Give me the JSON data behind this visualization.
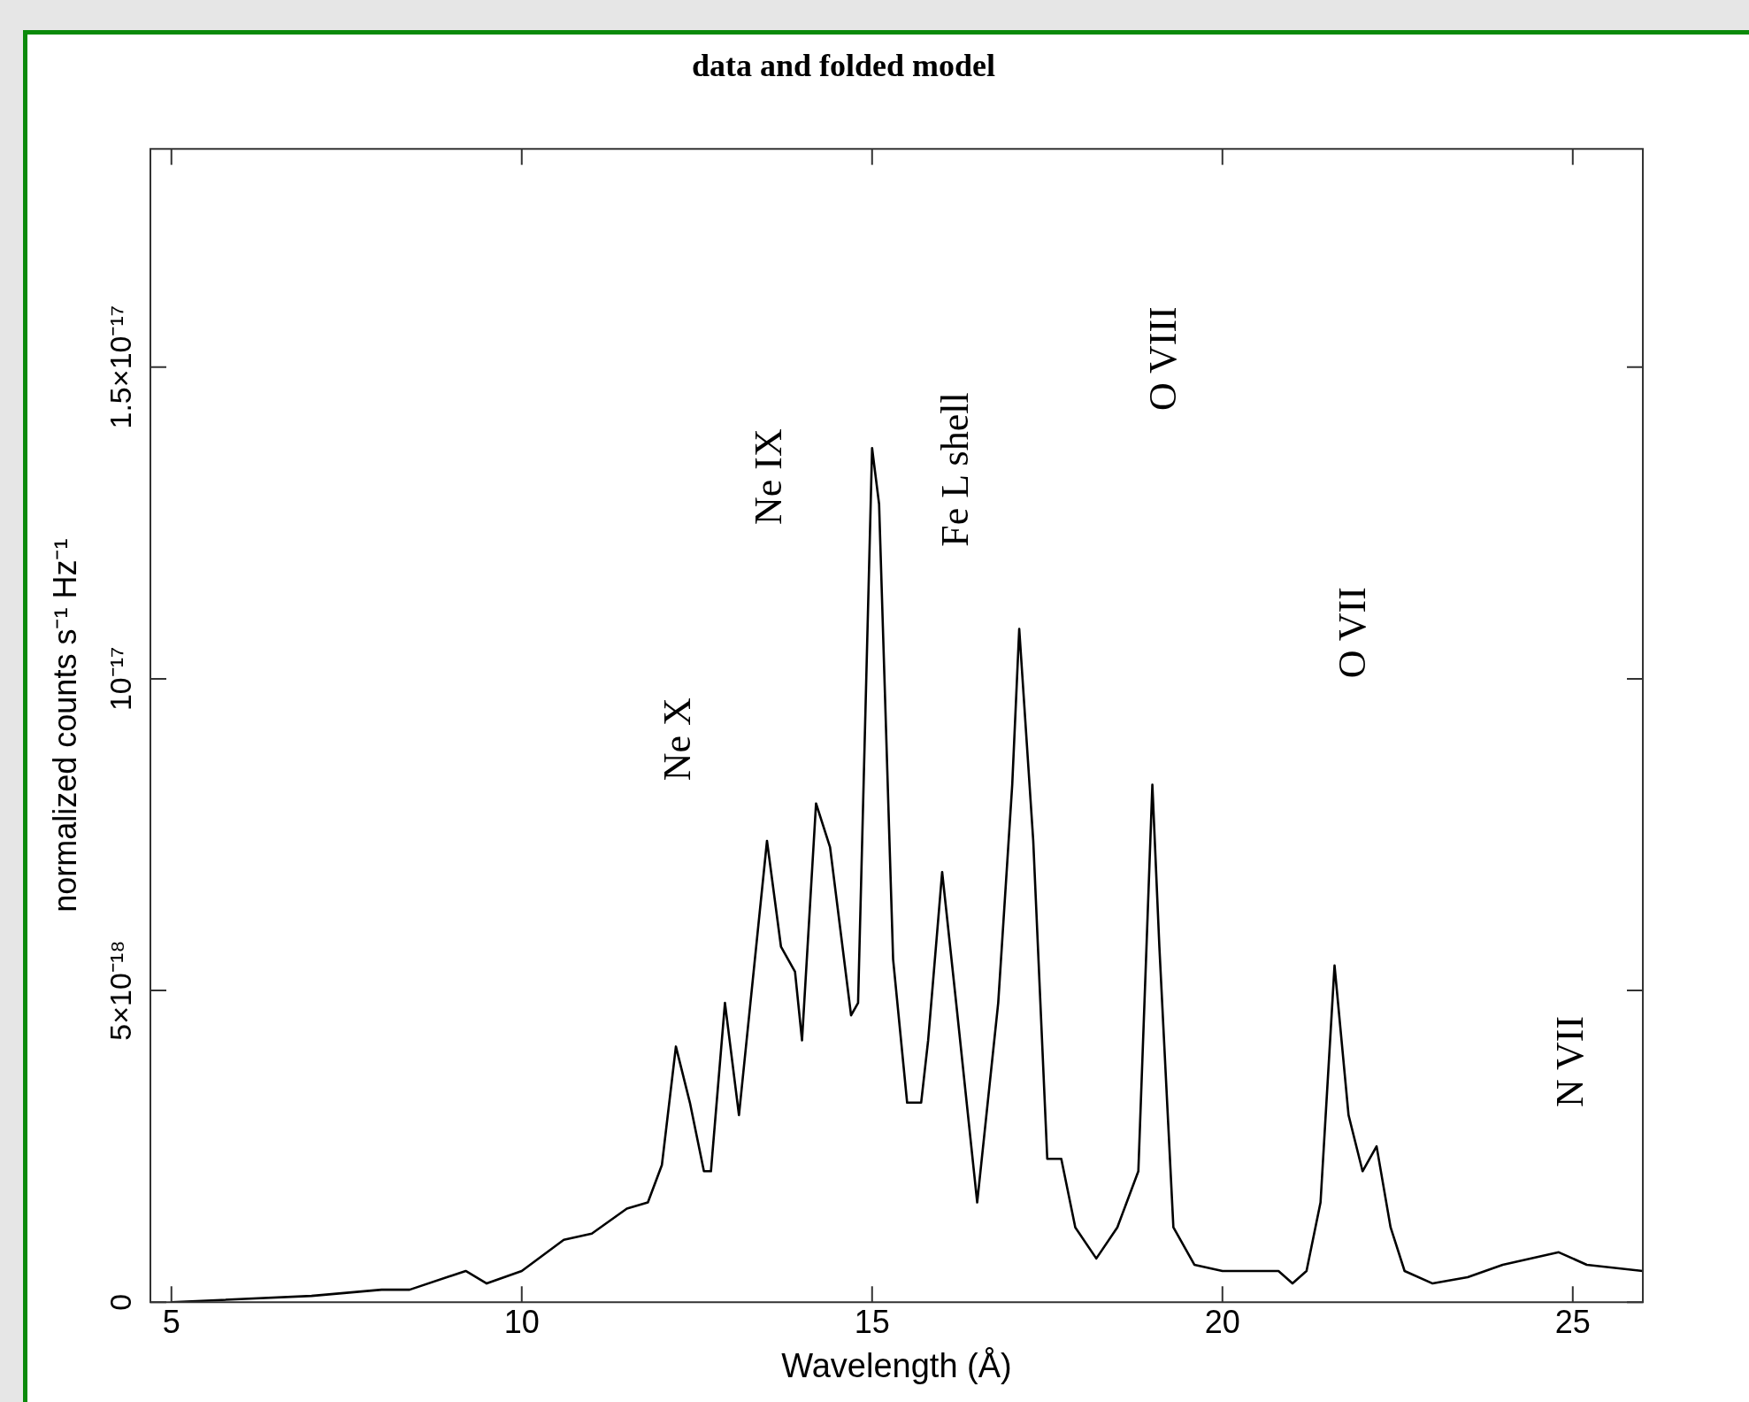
{
  "chart_data": {
    "type": "line",
    "title": "data and folded model",
    "xlabel": "Wavelength (Å)",
    "ylabel": "normalized counts s⁻¹ Hz⁻¹",
    "xlim": [
      4.7,
      26
    ],
    "xticks": [
      5,
      10,
      15,
      20,
      25
    ],
    "ylim": [
      0,
      1.85e-17
    ],
    "yticks": [
      0,
      {
        "value": 5e-18,
        "label": "5×10⁻¹⁸"
      },
      {
        "value": 1e-17,
        "label": "10⁻¹⁷"
      },
      {
        "value": 1.5e-17,
        "label": "1.5×10⁻¹⁷"
      }
    ],
    "series": [
      {
        "color": "#000000",
        "x": [
          5,
          7,
          8,
          8.4,
          9.2,
          9.5,
          10,
          10.6,
          11,
          11.5,
          11.8,
          12,
          12.2,
          12.4,
          12.6,
          12.7,
          12.9,
          13.1,
          13.5,
          13.7,
          13.9,
          14,
          14.2,
          14.4,
          14.7,
          14.8,
          15,
          15.1,
          15.3,
          15.5,
          15.7,
          15.8,
          16,
          16.2,
          16.5,
          16.8,
          17,
          17.1,
          17.3,
          17.5,
          17.7,
          17.9,
          18.2,
          18.5,
          18.8,
          19,
          19.1,
          19.3,
          19.6,
          20,
          20.8,
          21,
          21.2,
          21.4,
          21.6,
          21.8,
          22,
          22.2,
          22.4,
          22.6,
          23,
          23.5,
          24,
          24.8,
          25.2,
          26
        ],
        "values": [
          0,
          1e-19,
          2e-19,
          2e-19,
          5e-19,
          3e-19,
          5e-19,
          1e-18,
          1.1e-18,
          1.5e-18,
          1.6e-18,
          2.2e-18,
          4.1e-18,
          3.2e-18,
          2.1e-18,
          2.1e-18,
          4.8e-18,
          3e-18,
          7.4e-18,
          5.7e-18,
          5.3e-18,
          4.2e-18,
          8e-18,
          7.3e-18,
          4.6e-18,
          4.8e-18,
          1.37e-17,
          1.28e-17,
          5.5e-18,
          3.2e-18,
          3.2e-18,
          4.2e-18,
          6.9e-18,
          4.8e-18,
          1.6e-18,
          4.8e-18,
          8.3e-18,
          1.08e-17,
          7.4e-18,
          2.3e-18,
          2.3e-18,
          1.2e-18,
          7e-19,
          1.2e-18,
          2.1e-18,
          8.3e-18,
          5.7e-18,
          1.2e-18,
          6e-19,
          5e-19,
          5e-19,
          3e-19,
          5e-19,
          1.6e-18,
          5.4e-18,
          3e-18,
          2.1e-18,
          2.5e-18,
          1.2e-18,
          5e-19,
          3e-19,
          4e-19,
          6e-19,
          8e-19,
          6e-19,
          5e-19
        ]
      }
    ],
    "annotations": [
      "Ne X",
      "Ne IX",
      "Fe L shell",
      "O VIII",
      "O VII",
      "N VII"
    ],
    "grid": false,
    "legend": false,
    "marker": "none",
    "line_style": "solid"
  }
}
